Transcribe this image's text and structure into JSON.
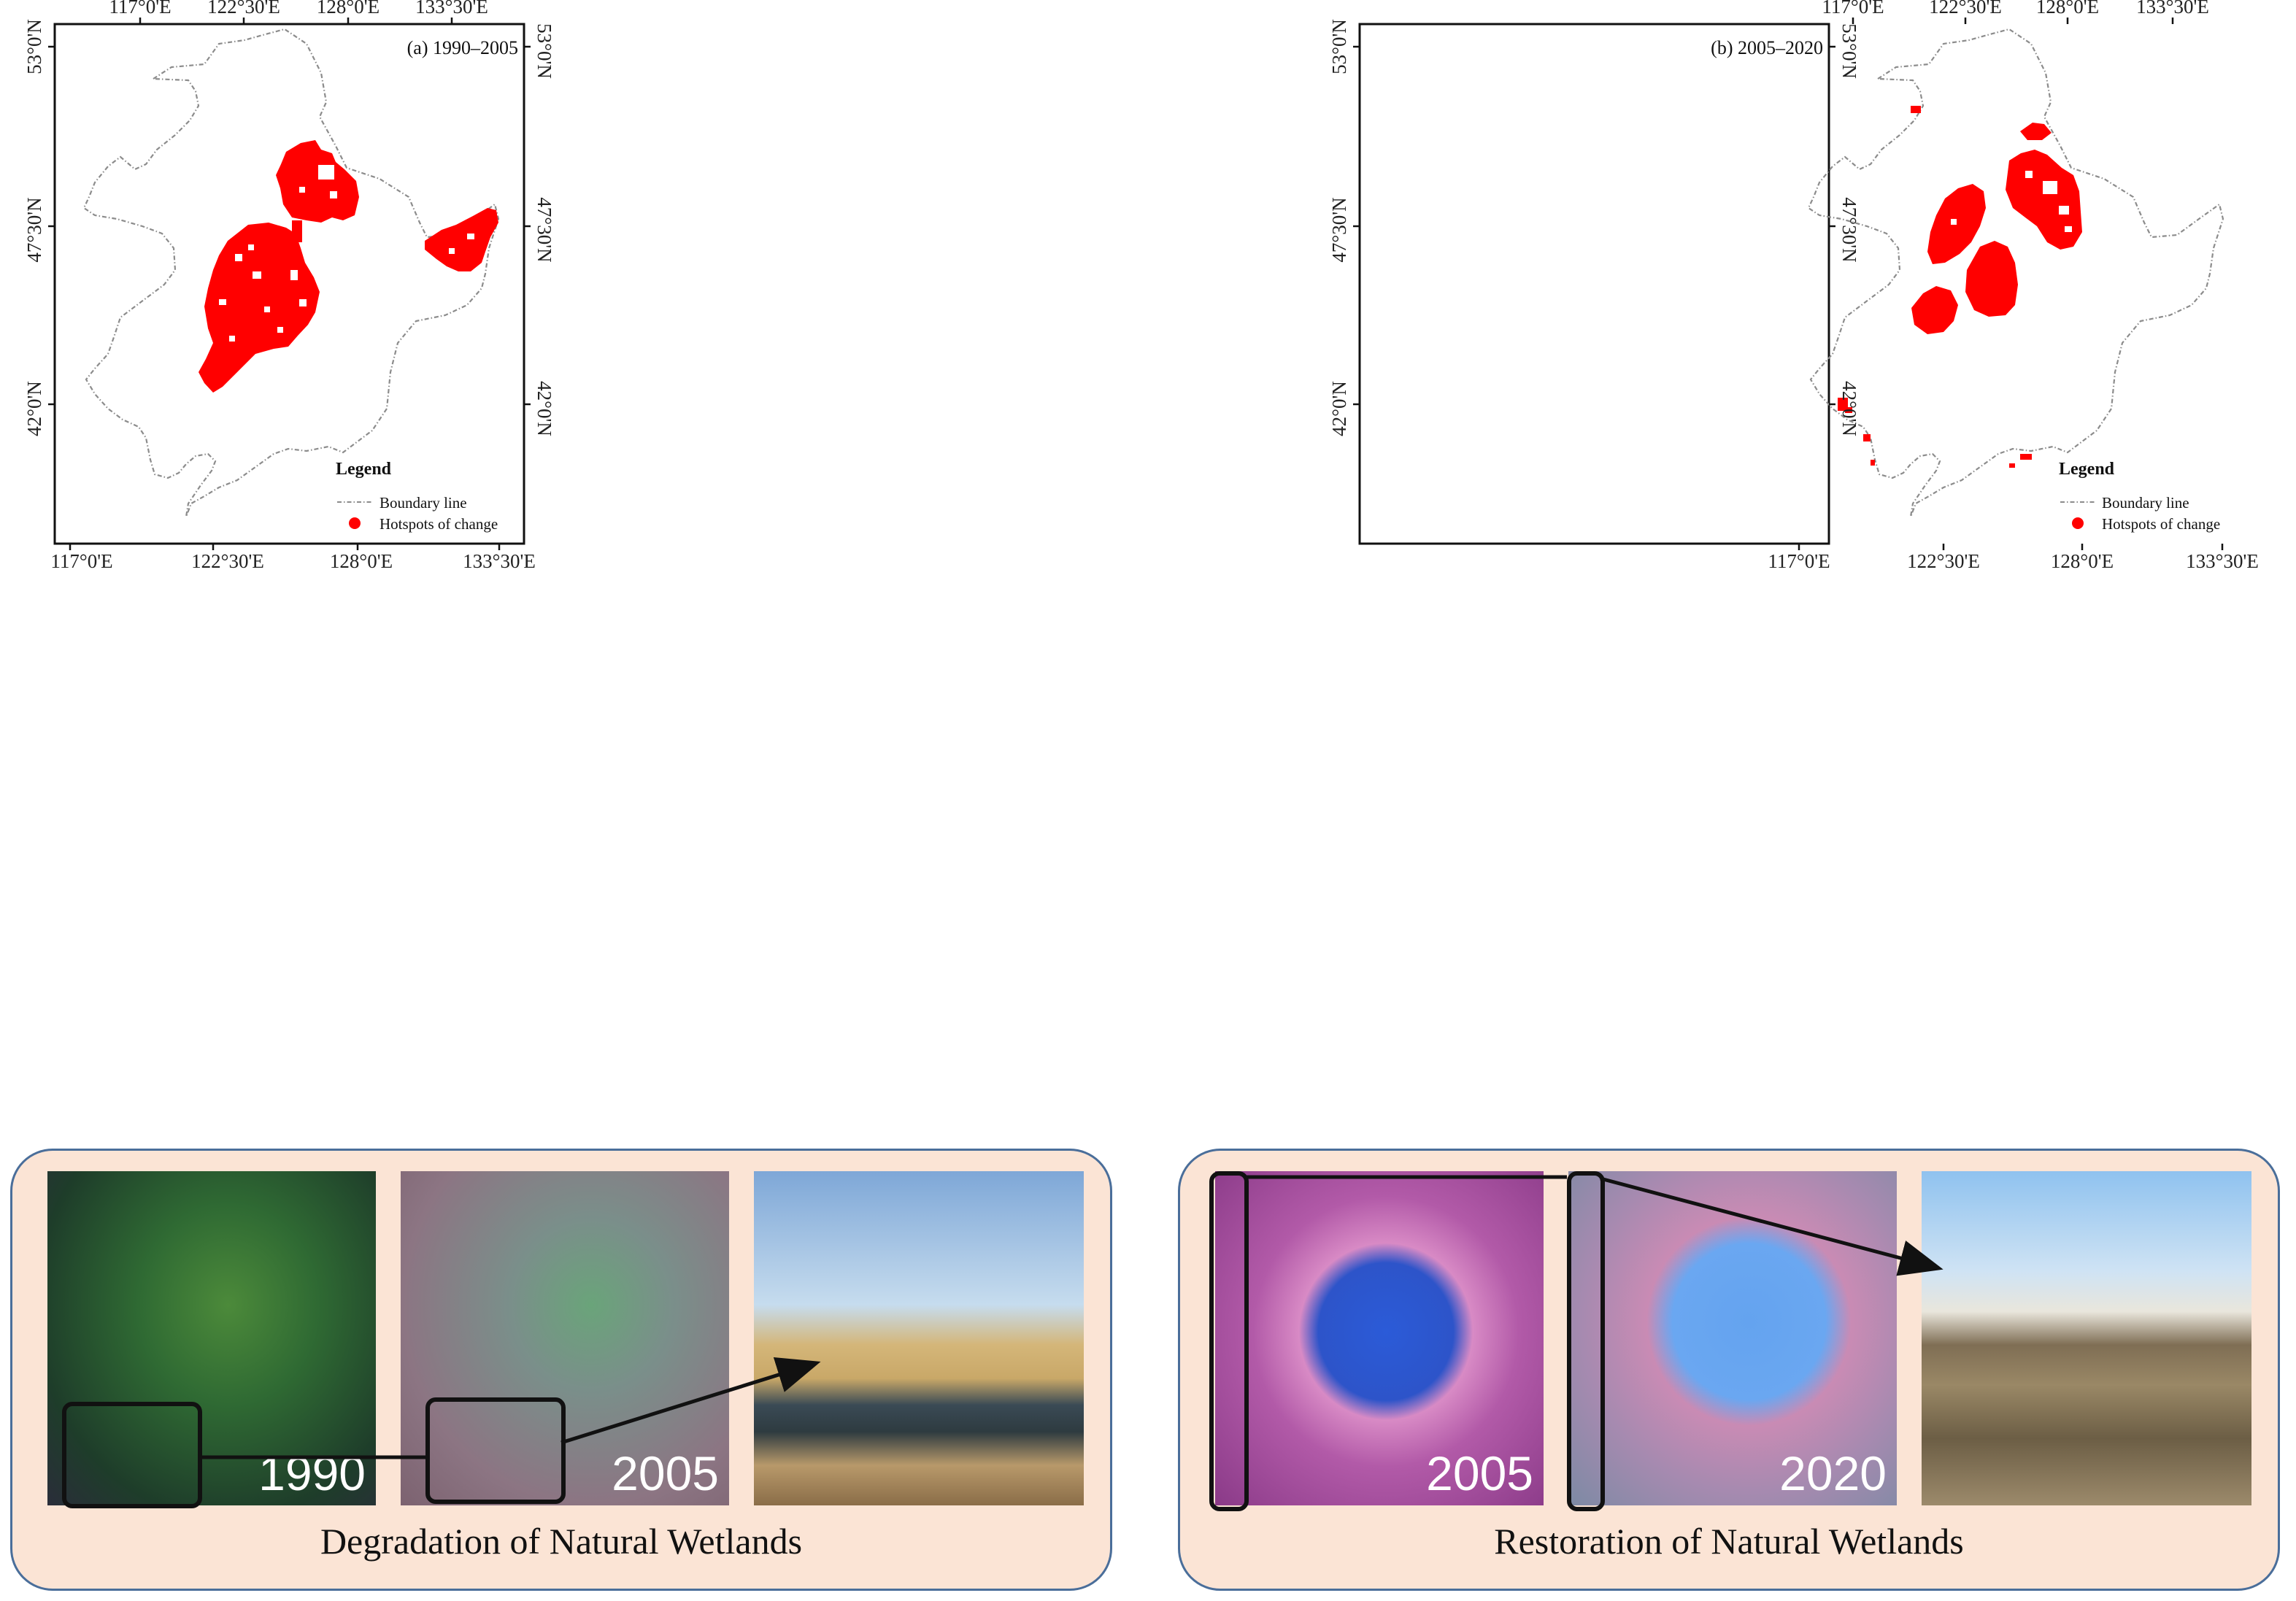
{
  "map_panels": [
    {
      "id": "a",
      "label": "(a) 1990–2005",
      "top_ticks": [
        "117°0'E",
        "122°30'E",
        "128°0'E",
        "133°30'E"
      ],
      "bottom_ticks": [
        "117°0'E",
        "122°30'E",
        "128°0'E",
        "133°30'E"
      ],
      "left_ticks": [
        "53°0'N",
        "47°30'N",
        "42°0'N"
      ],
      "right_ticks": [
        "53°0'N",
        "47°30'N",
        "42°0'N"
      ]
    },
    {
      "id": "b",
      "label": "(b) 2005–2020",
      "top_ticks": [
        "117°0'E",
        "122°30'E",
        "128°0'E",
        "133°30'E"
      ],
      "bottom_ticks": [
        "117°0'E",
        "122°30'E",
        "128°0'E",
        "133°30'E"
      ],
      "left_ticks": [
        "53°0'N",
        "47°30'N",
        "42°0'N"
      ],
      "right_ticks": [
        "53°0'N",
        "47°30'N",
        "42°0'N"
      ]
    }
  ],
  "legend": {
    "title": "Legend",
    "items": [
      {
        "label": "Boundary line",
        "symbol": "dash-dot-line",
        "color": "#8c8c8c"
      },
      {
        "label": "Hotspots of change",
        "symbol": "filled-circle",
        "color": "#ff0000"
      }
    ]
  },
  "colors": {
    "hotspot": "#ff0000",
    "boundary": "#8c8c8c",
    "box_fill": "#fbe4d5",
    "box_border": "#4a6e9a"
  },
  "bottom_boxes": [
    {
      "caption": "Degradation of Natural Wetlands",
      "images": [
        {
          "year": "1990",
          "kind": "satellite-false-color"
        },
        {
          "year": "2005",
          "kind": "satellite-false-color"
        },
        {
          "year": "",
          "kind": "field-photo"
        }
      ]
    },
    {
      "caption": "Restoration of Natural Wetlands",
      "images": [
        {
          "year": "2005",
          "kind": "satellite-false-color"
        },
        {
          "year": "2020",
          "kind": "satellite-false-color"
        },
        {
          "year": "",
          "kind": "field-photo"
        }
      ]
    }
  ]
}
